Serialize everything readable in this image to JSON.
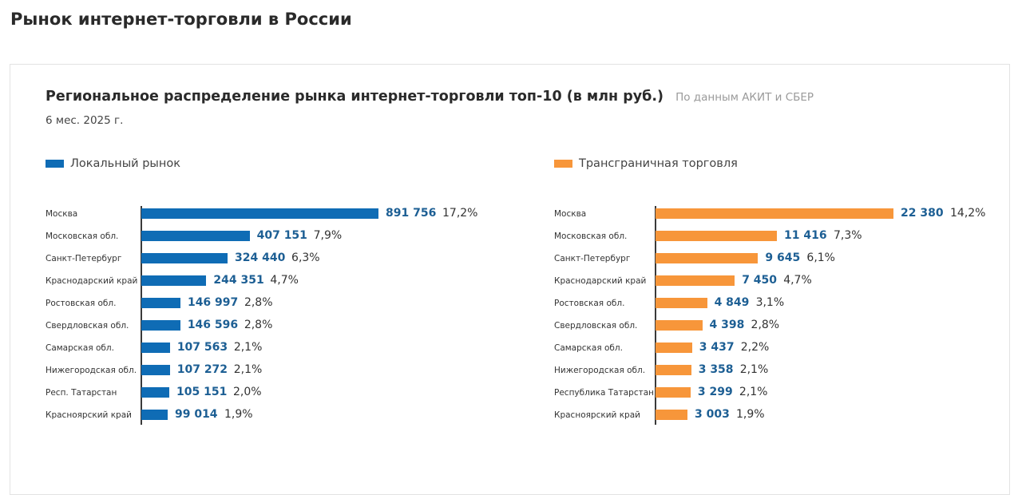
{
  "page": {
    "title": "Рынок интернет-торговли в России"
  },
  "chart_header": {
    "title": "Региональное распределение рынка интернет-торговли топ-10 (в млн руб.)",
    "source": "По данным АКИТ и СБЕР",
    "period": "6 мес. 2025 г."
  },
  "colors": {
    "local": "#0f6cb5",
    "crossborder": "#f7963a",
    "value_text": "#1d5f94"
  },
  "chart_data": [
    {
      "type": "bar",
      "orientation": "horizontal",
      "legend": "Локальный рынок",
      "categories": [
        "Москва",
        "Московская обл.",
        "Санкт-Петербург",
        "Краснодарский край",
        "Ростовская обл.",
        "Свердловская обл.",
        "Самарская обл.",
        "Нижегородская обл.",
        "Респ. Татарстан",
        "Красноярский край"
      ],
      "values": [
        891756,
        407151,
        324440,
        244351,
        146997,
        146596,
        107563,
        107272,
        105151,
        99014
      ],
      "value_labels": [
        "891 756",
        "407 151",
        "324 440",
        "244 351",
        "146 997",
        "146 596",
        "107 563",
        "107 272",
        "105 151",
        "99 014"
      ],
      "share_labels": [
        "17,2%",
        "7,9%",
        "6,3%",
        "4,7%",
        "2,8%",
        "2,8%",
        "2,1%",
        "2,1%",
        "2,0%",
        "1,9%"
      ]
    },
    {
      "type": "bar",
      "orientation": "horizontal",
      "legend": "Трансграничная торговля",
      "categories": [
        "Москва",
        "Московская обл.",
        "Санкт-Петербург",
        "Краснодарский край",
        "Ростовская обл.",
        "Свердловская обл.",
        "Самарская обл.",
        "Нижегородская обл.",
        "Республика Татарстан",
        "Красноярский край"
      ],
      "values": [
        22380,
        11416,
        9645,
        7450,
        4849,
        4398,
        3437,
        3358,
        3299,
        3003
      ],
      "value_labels": [
        "22 380",
        "11 416",
        "9 645",
        "7 450",
        "4 849",
        "4 398",
        "3 437",
        "3 358",
        "3 299",
        "3 003"
      ],
      "share_labels": [
        "14,2%",
        "7,3%",
        "6,1%",
        "4,7%",
        "3,1%",
        "2,8%",
        "2,2%",
        "2,1%",
        "2,1%",
        "1,9%"
      ]
    }
  ]
}
